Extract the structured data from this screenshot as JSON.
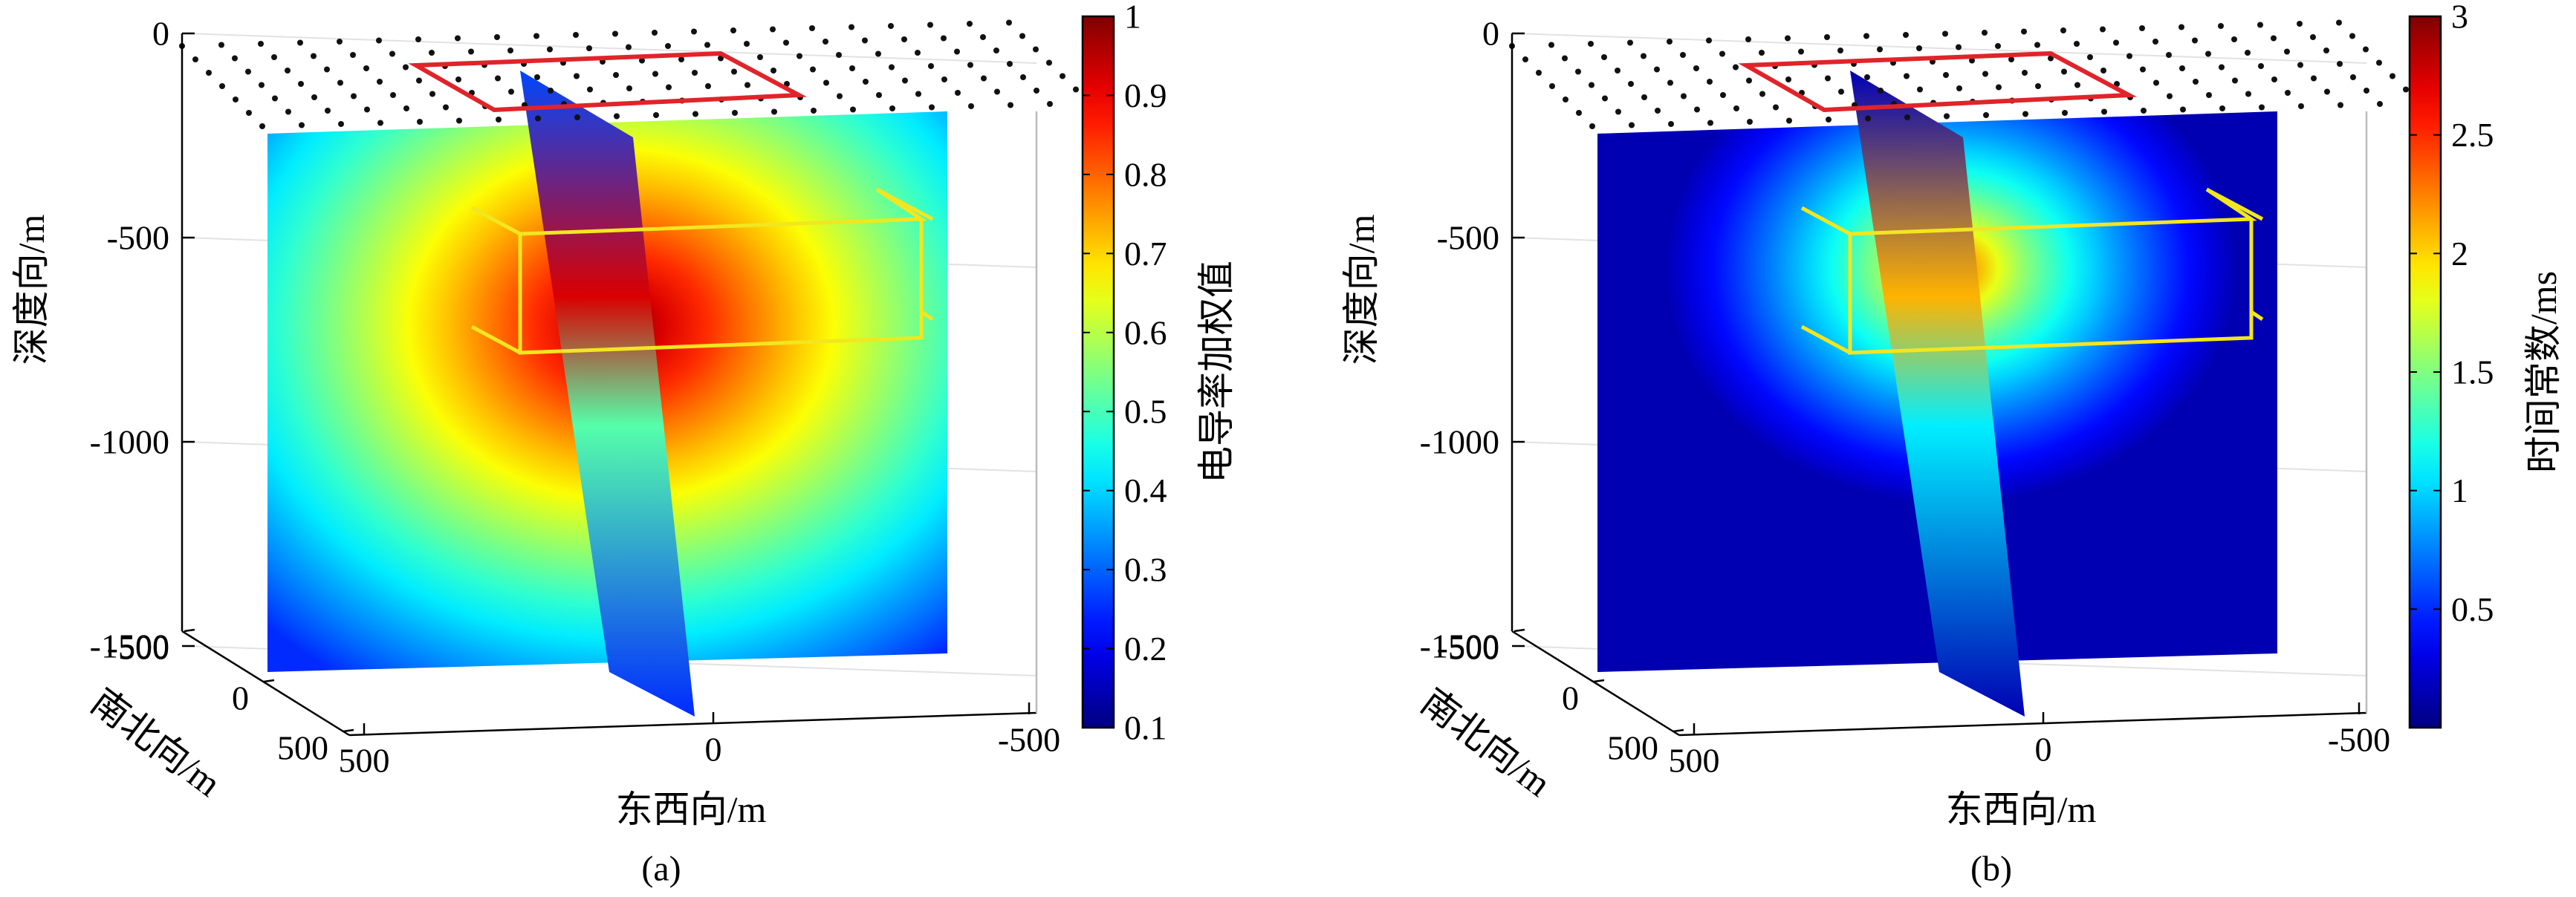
{
  "chart_data": [
    {
      "type": "heatmap",
      "panel_label": "(a)",
      "depth_axis": {
        "label": "深度向/m",
        "ticks": [
          "0",
          "-500",
          "-1000",
          "-1500"
        ],
        "values": [
          0,
          -500,
          -1000,
          -1500
        ],
        "range": [
          -1500,
          0
        ]
      },
      "ns_axis": {
        "label": "南北向/m",
        "ticks": [
          "-500",
          "0",
          "500"
        ],
        "values": [
          -500,
          0,
          500
        ]
      },
      "ew_axis": {
        "label": "东西向/m",
        "ticks": [
          "500",
          "0",
          "-500"
        ],
        "values": [
          500,
          0,
          -500
        ]
      },
      "colorbar": {
        "label": "电导率加权值",
        "ticks": [
          "1",
          "0.9",
          "0.8",
          "0.7",
          "0.6",
          "0.5",
          "0.4",
          "0.3",
          "0.2",
          "0.1"
        ],
        "values": [
          1,
          0.9,
          0.8,
          0.7,
          0.6,
          0.5,
          0.4,
          0.3,
          0.2,
          0.1
        ],
        "range": [
          0.1,
          1
        ],
        "colormap": "jet"
      },
      "field": {
        "peak_value": 1.0,
        "peak_depth": -650,
        "background_value": 0.25,
        "anomaly_extent": "broad"
      },
      "overlays": {
        "transmitter_loop_color": "#e0242a",
        "target_box_color": "#f2e620",
        "survey_points": "dot grid at surface"
      },
      "grid": true
    },
    {
      "type": "heatmap",
      "panel_label": "(b)",
      "depth_axis": {
        "label": "深度向/m",
        "ticks": [
          "0",
          "-500",
          "-1000",
          "-1500"
        ],
        "values": [
          0,
          -500,
          -1000,
          -1500
        ],
        "range": [
          -1500,
          0
        ]
      },
      "ns_axis": {
        "label": "南北向/m",
        "ticks": [
          "-500",
          "0",
          "500"
        ],
        "values": [
          -500,
          0,
          500
        ]
      },
      "ew_axis": {
        "label": "东西向/m",
        "ticks": [
          "500",
          "0",
          "-500"
        ],
        "values": [
          500,
          0,
          -500
        ]
      },
      "colorbar": {
        "label": "时间常数/ms",
        "ticks": [
          "3",
          "2.5",
          "2",
          "1.5",
          "1",
          "0.5"
        ],
        "values": [
          3,
          2.5,
          2,
          1.5,
          1,
          0.5
        ],
        "range": [
          0,
          3
        ],
        "colormap": "jet"
      },
      "field": {
        "peak_value": 2.8,
        "peak_depth": -500,
        "background_value": 0.15,
        "anomaly_extent": "compact"
      },
      "overlays": {
        "transmitter_loop_color": "#e0242a",
        "target_box_color": "#f2e620",
        "survey_points": "dot grid at surface"
      },
      "grid": true
    }
  ]
}
